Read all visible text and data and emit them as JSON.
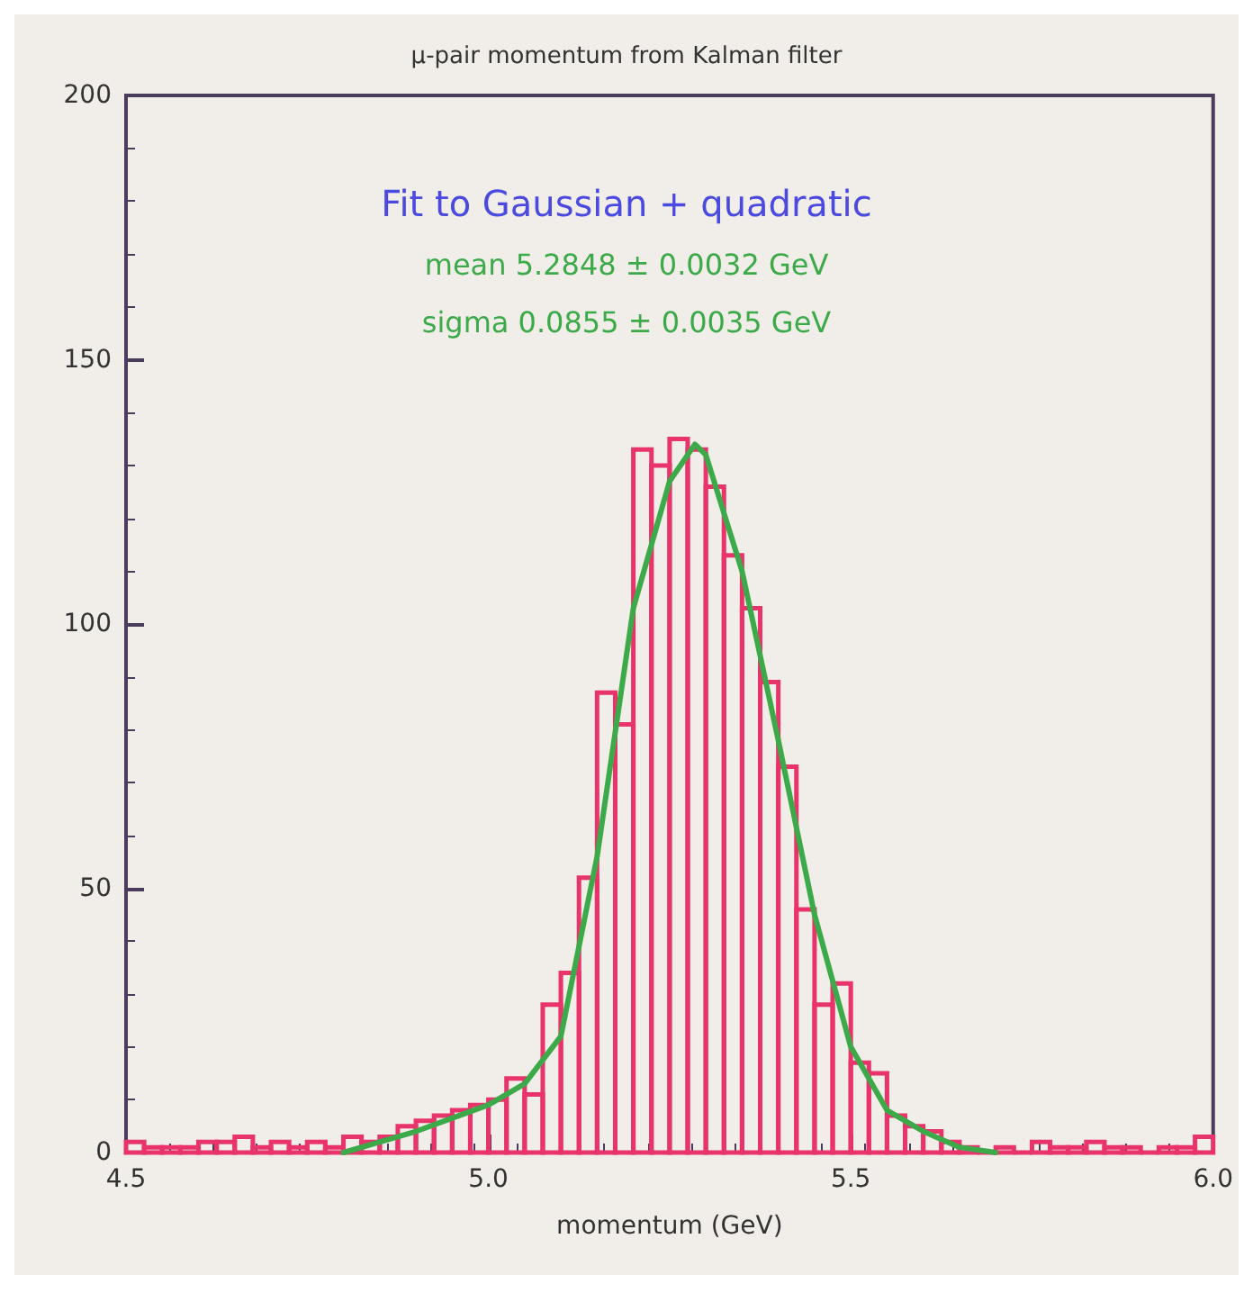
{
  "chart_data": {
    "type": "histogram",
    "title": "μ-pair momentum from Kalman filter",
    "xlabel": "momentum (GeV)",
    "annotations": [
      "Fit to Gaussian + quadratic",
      "mean 5.2848 ± 0.0032 GeV",
      "sigma 0.0855 ± 0.0035 GeV"
    ],
    "bins": [
      4.5,
      4.525,
      4.55,
      4.575,
      4.6,
      4.625,
      4.65,
      4.675,
      4.7,
      4.725,
      4.75,
      4.775,
      4.8,
      4.825,
      4.85,
      4.875,
      4.9,
      4.925,
      4.95,
      4.975,
      5.0,
      5.025,
      5.05,
      5.075,
      5.1,
      5.125,
      5.15,
      5.175,
      5.2,
      5.225,
      5.25,
      5.275,
      5.3,
      5.325,
      5.35,
      5.375,
      5.4,
      5.425,
      5.45,
      5.475,
      5.5,
      5.525,
      5.55,
      5.575,
      5.6,
      5.625,
      5.65,
      5.675,
      5.7,
      5.725,
      5.75,
      5.775,
      5.8,
      5.825,
      5.85,
      5.875,
      5.9,
      5.925,
      5.95,
      5.975,
      6.0
    ],
    "series": [
      {
        "color": "#e8336b",
        "values": [
          2,
          1,
          1,
          1,
          2,
          2,
          3,
          1,
          2,
          1,
          2,
          1,
          3,
          2,
          3,
          5,
          6,
          7,
          8,
          9,
          10,
          14,
          11,
          28,
          34,
          52,
          87,
          81,
          133,
          130,
          135,
          133,
          126,
          113,
          103,
          89,
          73,
          46,
          28,
          32,
          17,
          15,
          7,
          5,
          4,
          2,
          1,
          0,
          1,
          0,
          2,
          1,
          1,
          2,
          1,
          1,
          0,
          1,
          1,
          3
        ]
      },
      {
        "type": "line",
        "color": "#3daa4a",
        "x": [
          4.8,
          4.9,
          5.0,
          5.05,
          5.1,
          5.15,
          5.2,
          5.25,
          5.285,
          5.3,
          5.35,
          5.4,
          5.45,
          5.5,
          5.55,
          5.6,
          5.65,
          5.7
        ],
        "values": [
          0,
          4,
          9,
          13,
          22,
          56,
          103,
          127,
          134,
          132,
          110,
          78,
          45,
          20,
          8,
          4,
          1,
          0
        ]
      }
    ],
    "marker": "none",
    "line_style": "solid",
    "xlim": [
      4.5,
      6.0
    ],
    "xticks": [
      4.5,
      {
        "value": 5,
        "label": "5.0"
      },
      5.5,
      {
        "value": 6,
        "label": "6.0"
      }
    ],
    "ylim": [
      0,
      200
    ],
    "yticks": [
      0,
      50,
      100,
      150,
      200
    ],
    "grid": false
  }
}
